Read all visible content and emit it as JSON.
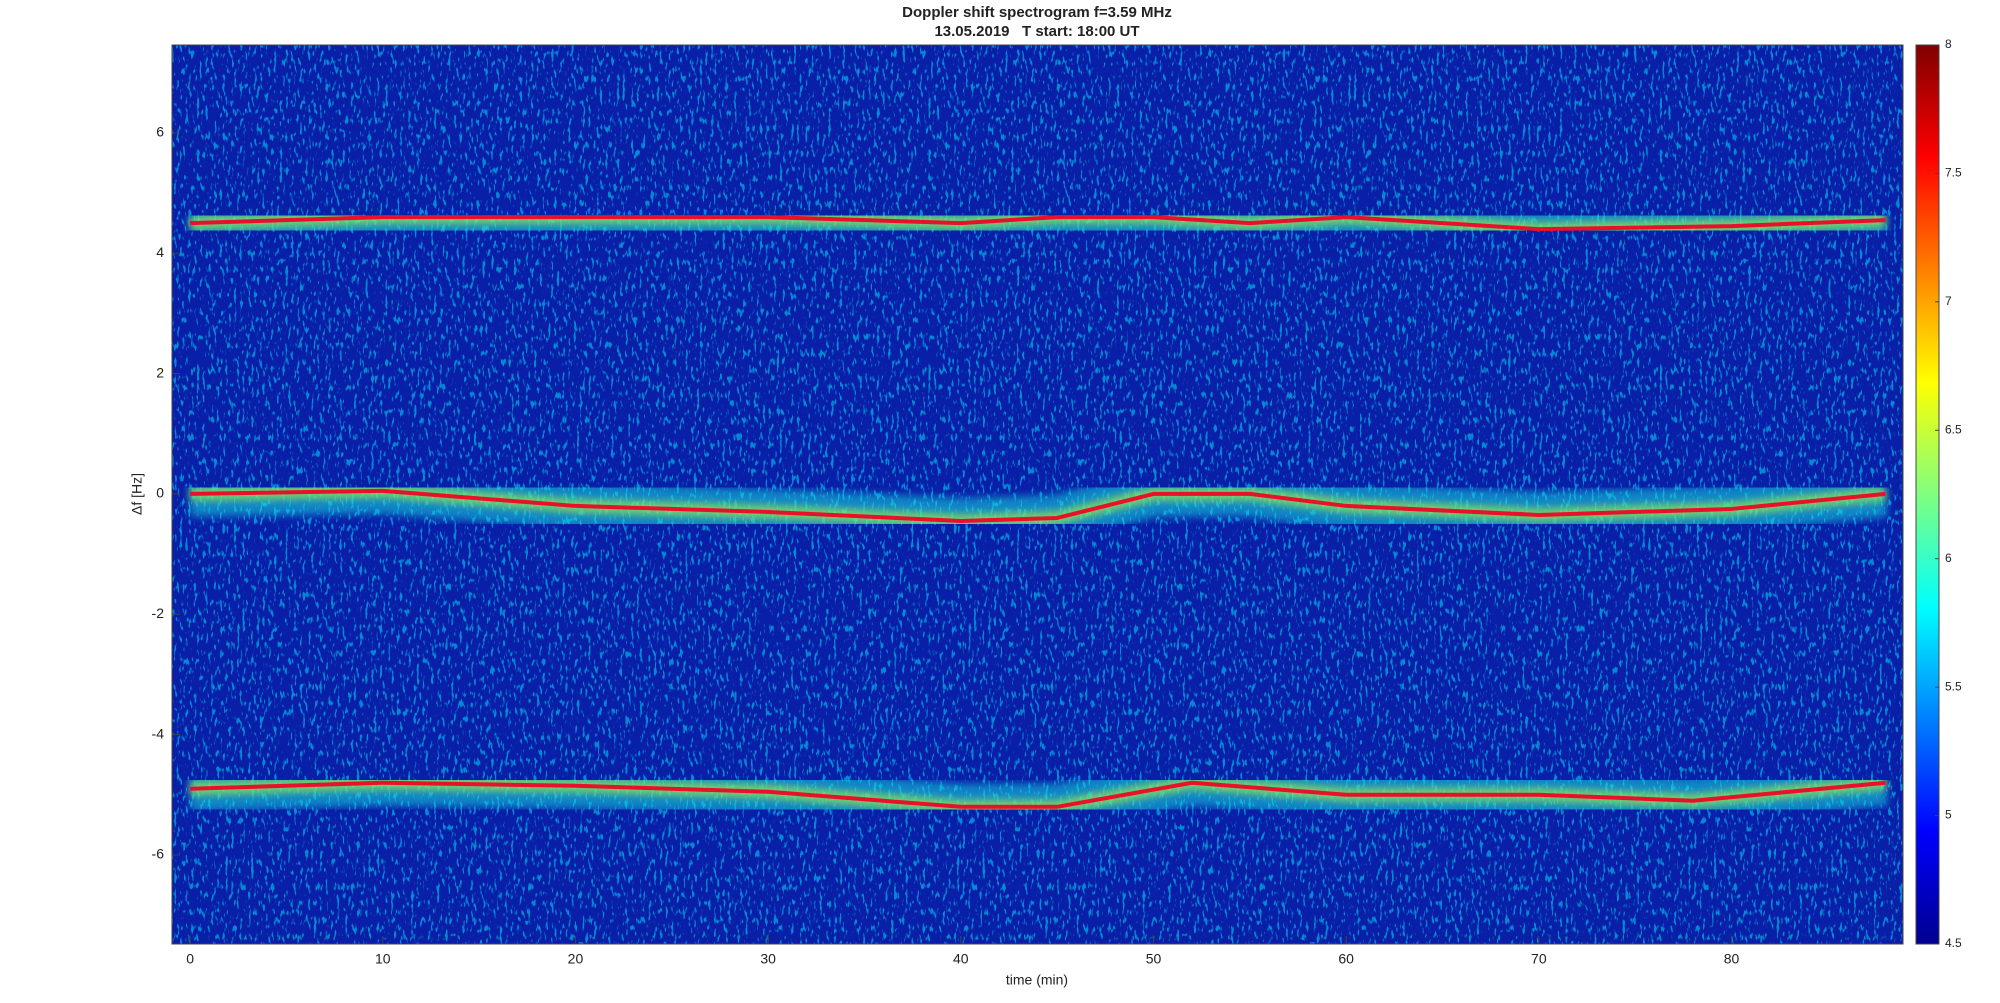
{
  "chart_data": {
    "type": "spectrogram",
    "title": "Doppler shift spectrogram f=3.59 MHz",
    "subtitle": "13.05.2019   T start: 18:00 UT",
    "x_label": "time (min)",
    "y_label": "Δf [Hz]",
    "xlim": [
      -0.94,
      88.9
    ],
    "xticks": [
      0,
      10,
      20,
      30,
      40,
      50,
      60,
      70,
      80
    ],
    "ylim": [
      -7.48,
      7.46
    ],
    "yticks": [
      -6,
      -4,
      -2,
      0,
      2,
      4,
      6
    ],
    "colormap": "jet",
    "clim": [
      4.5,
      8
    ],
    "cticks": [
      4.5,
      5,
      5.5,
      6,
      6.5,
      7,
      7.5,
      8
    ],
    "series": [
      {
        "name": "upper trace",
        "color": "#e8102a",
        "x": [
          0,
          10,
          20,
          30,
          40,
          45,
          50,
          55,
          60,
          70,
          80,
          88
        ],
        "values": [
          4.5,
          4.6,
          4.6,
          4.6,
          4.5,
          4.6,
          4.6,
          4.5,
          4.6,
          4.4,
          4.45,
          4.55
        ]
      },
      {
        "name": "middle trace",
        "color": "#e8102a",
        "x": [
          0,
          10,
          20,
          30,
          40,
          45,
          50,
          55,
          60,
          70,
          80,
          88
        ],
        "values": [
          0,
          0.05,
          -0.2,
          -0.3,
          -0.45,
          -0.4,
          0,
          0,
          -0.2,
          -0.35,
          -0.25,
          0
        ]
      },
      {
        "name": "lower trace",
        "color": "#e8102a",
        "x": [
          0,
          10,
          20,
          30,
          40,
          45,
          52,
          60,
          70,
          78,
          88
        ],
        "values": [
          -4.9,
          -4.8,
          -4.85,
          -4.95,
          -5.2,
          -5.2,
          -4.8,
          -5.0,
          -5.0,
          -5.1,
          -4.8
        ]
      }
    ]
  }
}
